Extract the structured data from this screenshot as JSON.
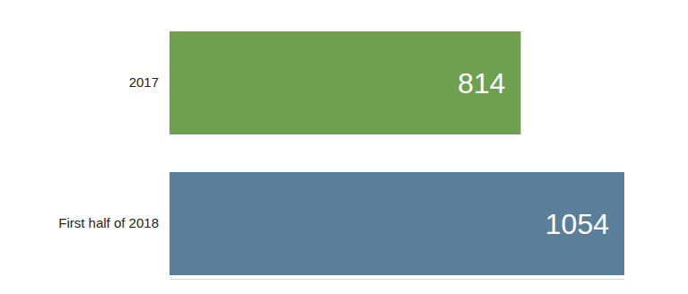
{
  "chart_data": {
    "type": "bar",
    "orientation": "horizontal",
    "categories": [
      "2017",
      "First half of 2018"
    ],
    "values": [
      814,
      1054
    ],
    "colors": [
      "#6fa04f",
      "#5b7f9b"
    ],
    "xlim": [
      0,
      1054
    ],
    "tick_labels": "y",
    "data_labels": true,
    "grid": false
  }
}
